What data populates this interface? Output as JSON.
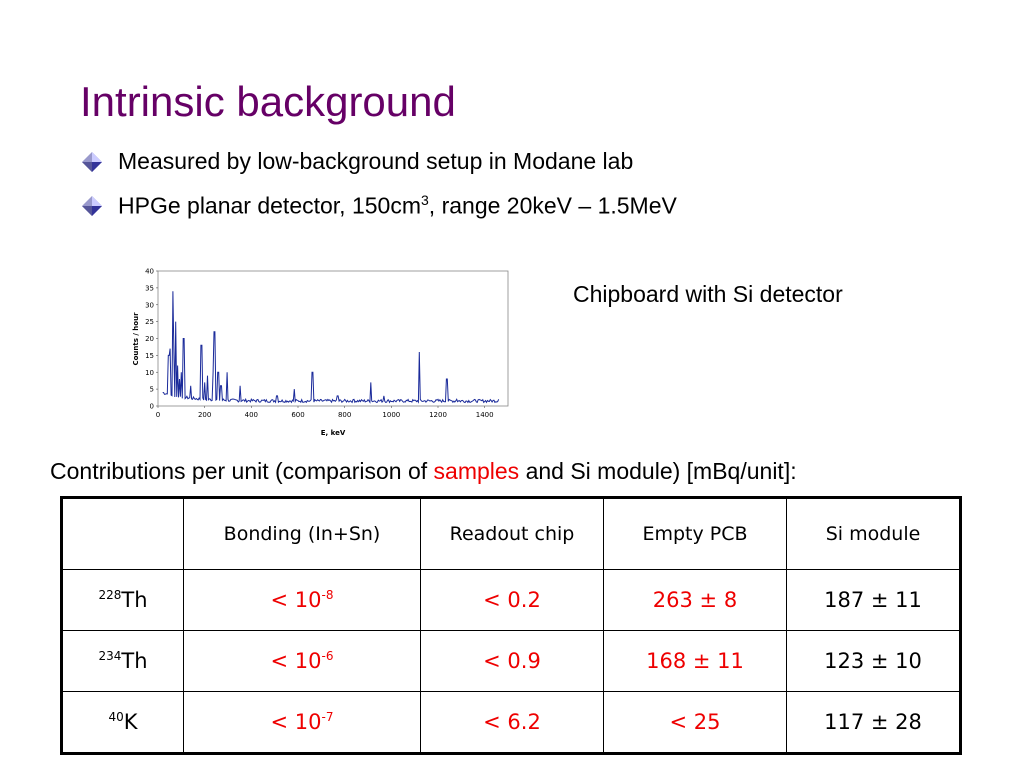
{
  "slide": {
    "title": "Intrinsic background",
    "bullets": [
      {
        "text": "Measured by low-background setup in Modane lab"
      },
      {
        "text_pre": "HPGe planar detector, 150cm",
        "sup": "3",
        "text_post": ", range 20keV – 1.5MeV"
      }
    ],
    "chart_caption": "Chipboard with Si detector",
    "contrib": {
      "pre": "Contributions per unit (comparison of ",
      "samples": "samples",
      "mid": " and Si module) [mBq/unit]:"
    },
    "colors": {
      "title": "#660066",
      "highlight": "#ee0000",
      "plot_line": "#1a2a9a"
    }
  },
  "table": {
    "headers": [
      "",
      "Bonding (In+Sn)",
      "Readout chip",
      "Empty PCB",
      "Si module"
    ],
    "rows": [
      {
        "iso_sup": "228",
        "iso": "Th",
        "c1_pre": "< 10",
        "c1_sup": "-8",
        "c2": "< 0.2",
        "c3": "263 ± 8",
        "c4": "187 ± 11"
      },
      {
        "iso_sup": "234",
        "iso": "Th",
        "c1_pre": "< 10",
        "c1_sup": "-6",
        "c2": "< 0.9",
        "c3": "168 ± 11",
        "c4": "123 ± 10"
      },
      {
        "iso_sup": "40",
        "iso": "K",
        "c1_pre": "< 10",
        "c1_sup": "-7",
        "c2": "< 6.2",
        "c3": "< 25",
        "c4": "117 ± 28"
      }
    ]
  },
  "chart_data": {
    "type": "line",
    "title": "",
    "xlabel": "E, keV",
    "ylabel": "Counts / hour",
    "xlim": [
      0,
      1500
    ],
    "ylim": [
      0,
      40
    ],
    "xticks": [
      0,
      200,
      400,
      600,
      800,
      1000,
      1200,
      1400
    ],
    "yticks": [
      0,
      5,
      10,
      15,
      20,
      25,
      30,
      35,
      40
    ],
    "baseline": 1.5,
    "peaks": [
      [
        46,
        15
      ],
      [
        53,
        17
      ],
      [
        63,
        34
      ],
      [
        68,
        16
      ],
      [
        75,
        25
      ],
      [
        85,
        12
      ],
      [
        92,
        8
      ],
      [
        100,
        10
      ],
      [
        110,
        20
      ],
      [
        140,
        6
      ],
      [
        186,
        18
      ],
      [
        200,
        7
      ],
      [
        212,
        9
      ],
      [
        235,
        10
      ],
      [
        242,
        22
      ],
      [
        258,
        10
      ],
      [
        270,
        6
      ],
      [
        295,
        10
      ],
      [
        352,
        6
      ],
      [
        510,
        3
      ],
      [
        583,
        5
      ],
      [
        662,
        10
      ],
      [
        770,
        3
      ],
      [
        840,
        2
      ],
      [
        911,
        7
      ],
      [
        969,
        3
      ],
      [
        1120,
        16
      ],
      [
        1200,
        2
      ],
      [
        1238,
        8
      ],
      [
        1281,
        2
      ],
      [
        1460,
        2
      ]
    ]
  }
}
